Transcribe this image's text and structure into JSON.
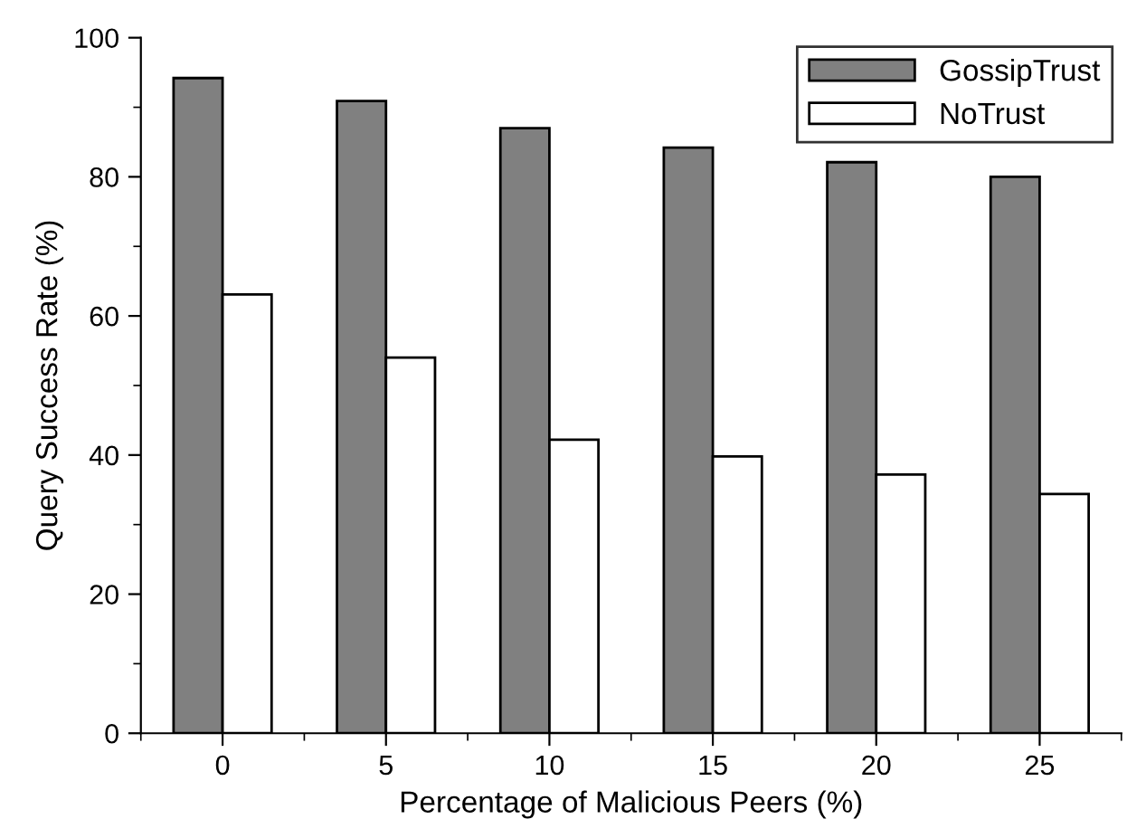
{
  "chart_data": {
    "type": "bar",
    "xlabel": "Percentage of Malicious Peers (%)",
    "ylabel": "Query Success Rate (%)",
    "categories": [
      "0",
      "5",
      "10",
      "15",
      "20",
      "25"
    ],
    "series": [
      {
        "name": "GossipTrust",
        "color": "#808080",
        "values": [
          94.2,
          90.9,
          87.0,
          84.2,
          82.1,
          80.0
        ]
      },
      {
        "name": "NoTrust",
        "color": "#ffffff",
        "values": [
          63.1,
          54.0,
          42.2,
          39.8,
          37.2,
          34.4
        ]
      }
    ],
    "ylim": [
      0,
      100
    ],
    "yticks": [
      0,
      20,
      40,
      60,
      80,
      100
    ],
    "grid": false,
    "legend": "top right"
  }
}
